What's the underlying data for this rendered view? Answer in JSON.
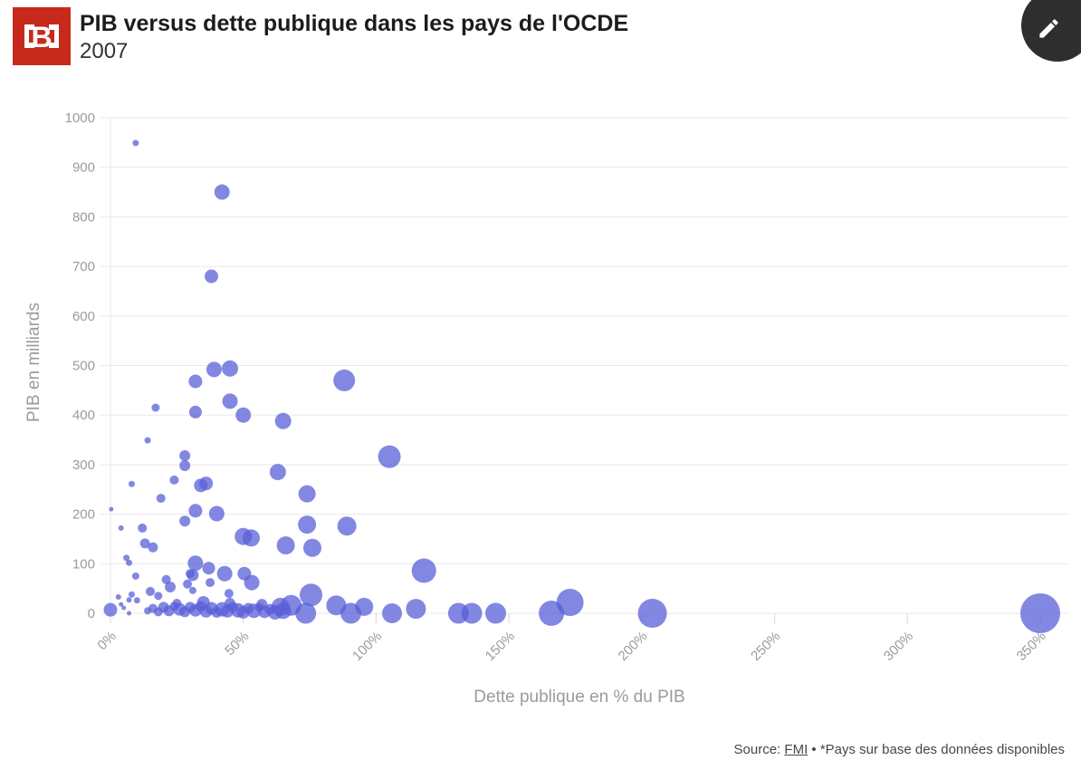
{
  "header": {
    "title": "PIB versus dette publique dans les pays de l'OCDE",
    "subtitle": "2007",
    "logo_letter": "B",
    "logo_color": "#c7291b"
  },
  "axes": {
    "y_label": "PIB en milliards",
    "x_label": "Dette publique en % du PIB"
  },
  "footer": {
    "source_label": "Source: ",
    "source_link": "FMI",
    "source_suffix": " • *Pays sur base des données disponibles"
  },
  "colors": {
    "logo_red": "#c7291b",
    "edit_button_bg": "#2e2e2e",
    "bubble": "#585fd8"
  },
  "chart_data": {
    "type": "scatter",
    "title": "PIB versus dette publique dans les pays de l'OCDE",
    "subtitle_year": "2007",
    "xlabel": "Dette publique en % du PIB",
    "ylabel": "PIB en milliards",
    "xlim": [
      0,
      350
    ],
    "ylim": [
      0,
      1000
    ],
    "x_tick_values": [
      0,
      50,
      100,
      150,
      200,
      250,
      300,
      350
    ],
    "x_tick_labels": [
      "0%",
      "50%",
      "100%",
      "150%",
      "200%",
      "250%",
      "300%",
      "350%"
    ],
    "y_tick_values": [
      0,
      100,
      200,
      300,
      400,
      500,
      600,
      700,
      800,
      900,
      1000
    ],
    "grid": "horizontal",
    "legend": "none",
    "point_color": "#585fd8",
    "point_opacity": 0.75,
    "grid_color": "#e9e9e9",
    "tick_color": "#d8d8d8",
    "tick_label_color": "#9b9b9b",
    "points_format": [
      "dette_publique_pct",
      "pib_milliards",
      "bubble_radius_px"
    ],
    "points": [
      [
        9.5,
        949,
        3.5
      ],
      [
        42,
        850,
        8.5
      ],
      [
        38,
        680,
        7.5
      ],
      [
        39,
        492,
        8.5
      ],
      [
        45,
        494,
        9
      ],
      [
        32,
        468,
        7.5
      ],
      [
        88,
        470,
        12
      ],
      [
        45,
        428,
        8.5
      ],
      [
        17,
        415,
        4.5
      ],
      [
        32,
        406,
        7
      ],
      [
        50,
        400,
        8.5
      ],
      [
        65,
        388,
        9
      ],
      [
        14,
        349,
        3.5
      ],
      [
        105,
        316,
        12.5
      ],
      [
        28,
        318,
        6
      ],
      [
        28,
        298,
        6
      ],
      [
        63,
        285,
        9
      ],
      [
        8,
        261,
        3.5
      ],
      [
        24,
        269,
        5
      ],
      [
        34,
        258,
        7.5
      ],
      [
        36,
        262,
        7.5
      ],
      [
        74,
        241,
        9.5
      ],
      [
        19,
        232,
        5
      ],
      [
        0.3,
        210,
        2.5
      ],
      [
        32,
        207,
        7.5
      ],
      [
        40,
        201,
        8.5
      ],
      [
        28,
        186,
        6
      ],
      [
        4,
        172,
        3
      ],
      [
        12,
        172,
        5
      ],
      [
        74,
        179,
        10
      ],
      [
        89,
        176,
        10.5
      ],
      [
        50,
        155,
        9.5
      ],
      [
        53,
        152,
        9.5
      ],
      [
        13,
        141,
        5.5
      ],
      [
        16,
        133,
        5.5
      ],
      [
        66,
        137,
        10
      ],
      [
        76,
        132,
        10
      ],
      [
        6,
        112,
        3.5
      ],
      [
        7,
        102,
        3.5
      ],
      [
        32,
        101,
        8.5
      ],
      [
        9.5,
        75,
        4
      ],
      [
        31,
        77,
        6.5
      ],
      [
        37,
        91,
        7
      ],
      [
        43,
        80,
        8.5
      ],
      [
        30,
        80,
        5
      ],
      [
        118,
        86,
        13.5
      ],
      [
        3,
        33,
        3
      ],
      [
        4,
        18,
        2.5
      ],
      [
        5,
        11,
        2.5
      ],
      [
        7,
        27,
        3
      ],
      [
        8,
        38,
        3.5
      ],
      [
        7,
        0,
        2.5
      ],
      [
        10,
        26,
        3.5
      ],
      [
        15,
        44,
        5
      ],
      [
        18,
        35,
        4.5
      ],
      [
        21,
        68,
        5
      ],
      [
        22.5,
        53,
        6
      ],
      [
        29,
        59,
        5
      ],
      [
        31,
        46,
        4
      ],
      [
        37.5,
        62,
        5
      ],
      [
        44.6,
        40,
        5
      ],
      [
        50.4,
        80,
        7.5
      ],
      [
        53.2,
        62,
        8.5
      ],
      [
        0,
        7,
        7.5
      ],
      [
        64,
        13,
        10
      ],
      [
        68,
        16,
        11.5
      ],
      [
        73.5,
        0,
        11.5
      ],
      [
        75.5,
        37,
        12.5
      ],
      [
        85,
        16,
        11
      ],
      [
        90.5,
        0,
        11.5
      ],
      [
        95.5,
        13,
        10
      ],
      [
        106,
        0,
        11
      ],
      [
        115,
        9,
        11
      ],
      [
        131,
        0,
        11.5
      ],
      [
        136,
        0,
        11.5
      ],
      [
        145,
        0,
        11.5
      ],
      [
        166,
        0,
        14
      ],
      [
        173,
        22,
        15
      ],
      [
        204,
        0,
        16
      ],
      [
        350,
        0,
        22
      ],
      [
        14,
        5,
        4
      ],
      [
        16,
        10,
        5
      ],
      [
        18,
        3,
        5
      ],
      [
        20,
        12,
        6
      ],
      [
        22,
        5,
        6
      ],
      [
        24,
        14,
        5
      ],
      [
        26,
        8,
        7
      ],
      [
        28,
        3,
        6
      ],
      [
        30,
        12,
        6
      ],
      [
        32,
        6,
        7
      ],
      [
        34,
        14,
        6
      ],
      [
        36,
        4,
        7
      ],
      [
        38,
        10,
        7
      ],
      [
        40,
        2,
        6
      ],
      [
        42,
        8,
        8
      ],
      [
        44,
        4,
        7
      ],
      [
        46,
        12,
        6
      ],
      [
        48,
        6,
        8
      ],
      [
        50,
        2,
        7
      ],
      [
        52,
        10,
        6
      ],
      [
        54,
        5,
        8
      ],
      [
        56,
        12,
        5
      ],
      [
        58,
        3,
        7
      ],
      [
        60,
        8,
        6
      ],
      [
        62,
        2,
        8
      ],
      [
        45,
        20,
        6
      ],
      [
        35,
        22,
        7
      ],
      [
        25,
        20,
        5
      ],
      [
        57,
        18,
        6
      ],
      [
        65,
        5,
        9
      ]
    ]
  }
}
